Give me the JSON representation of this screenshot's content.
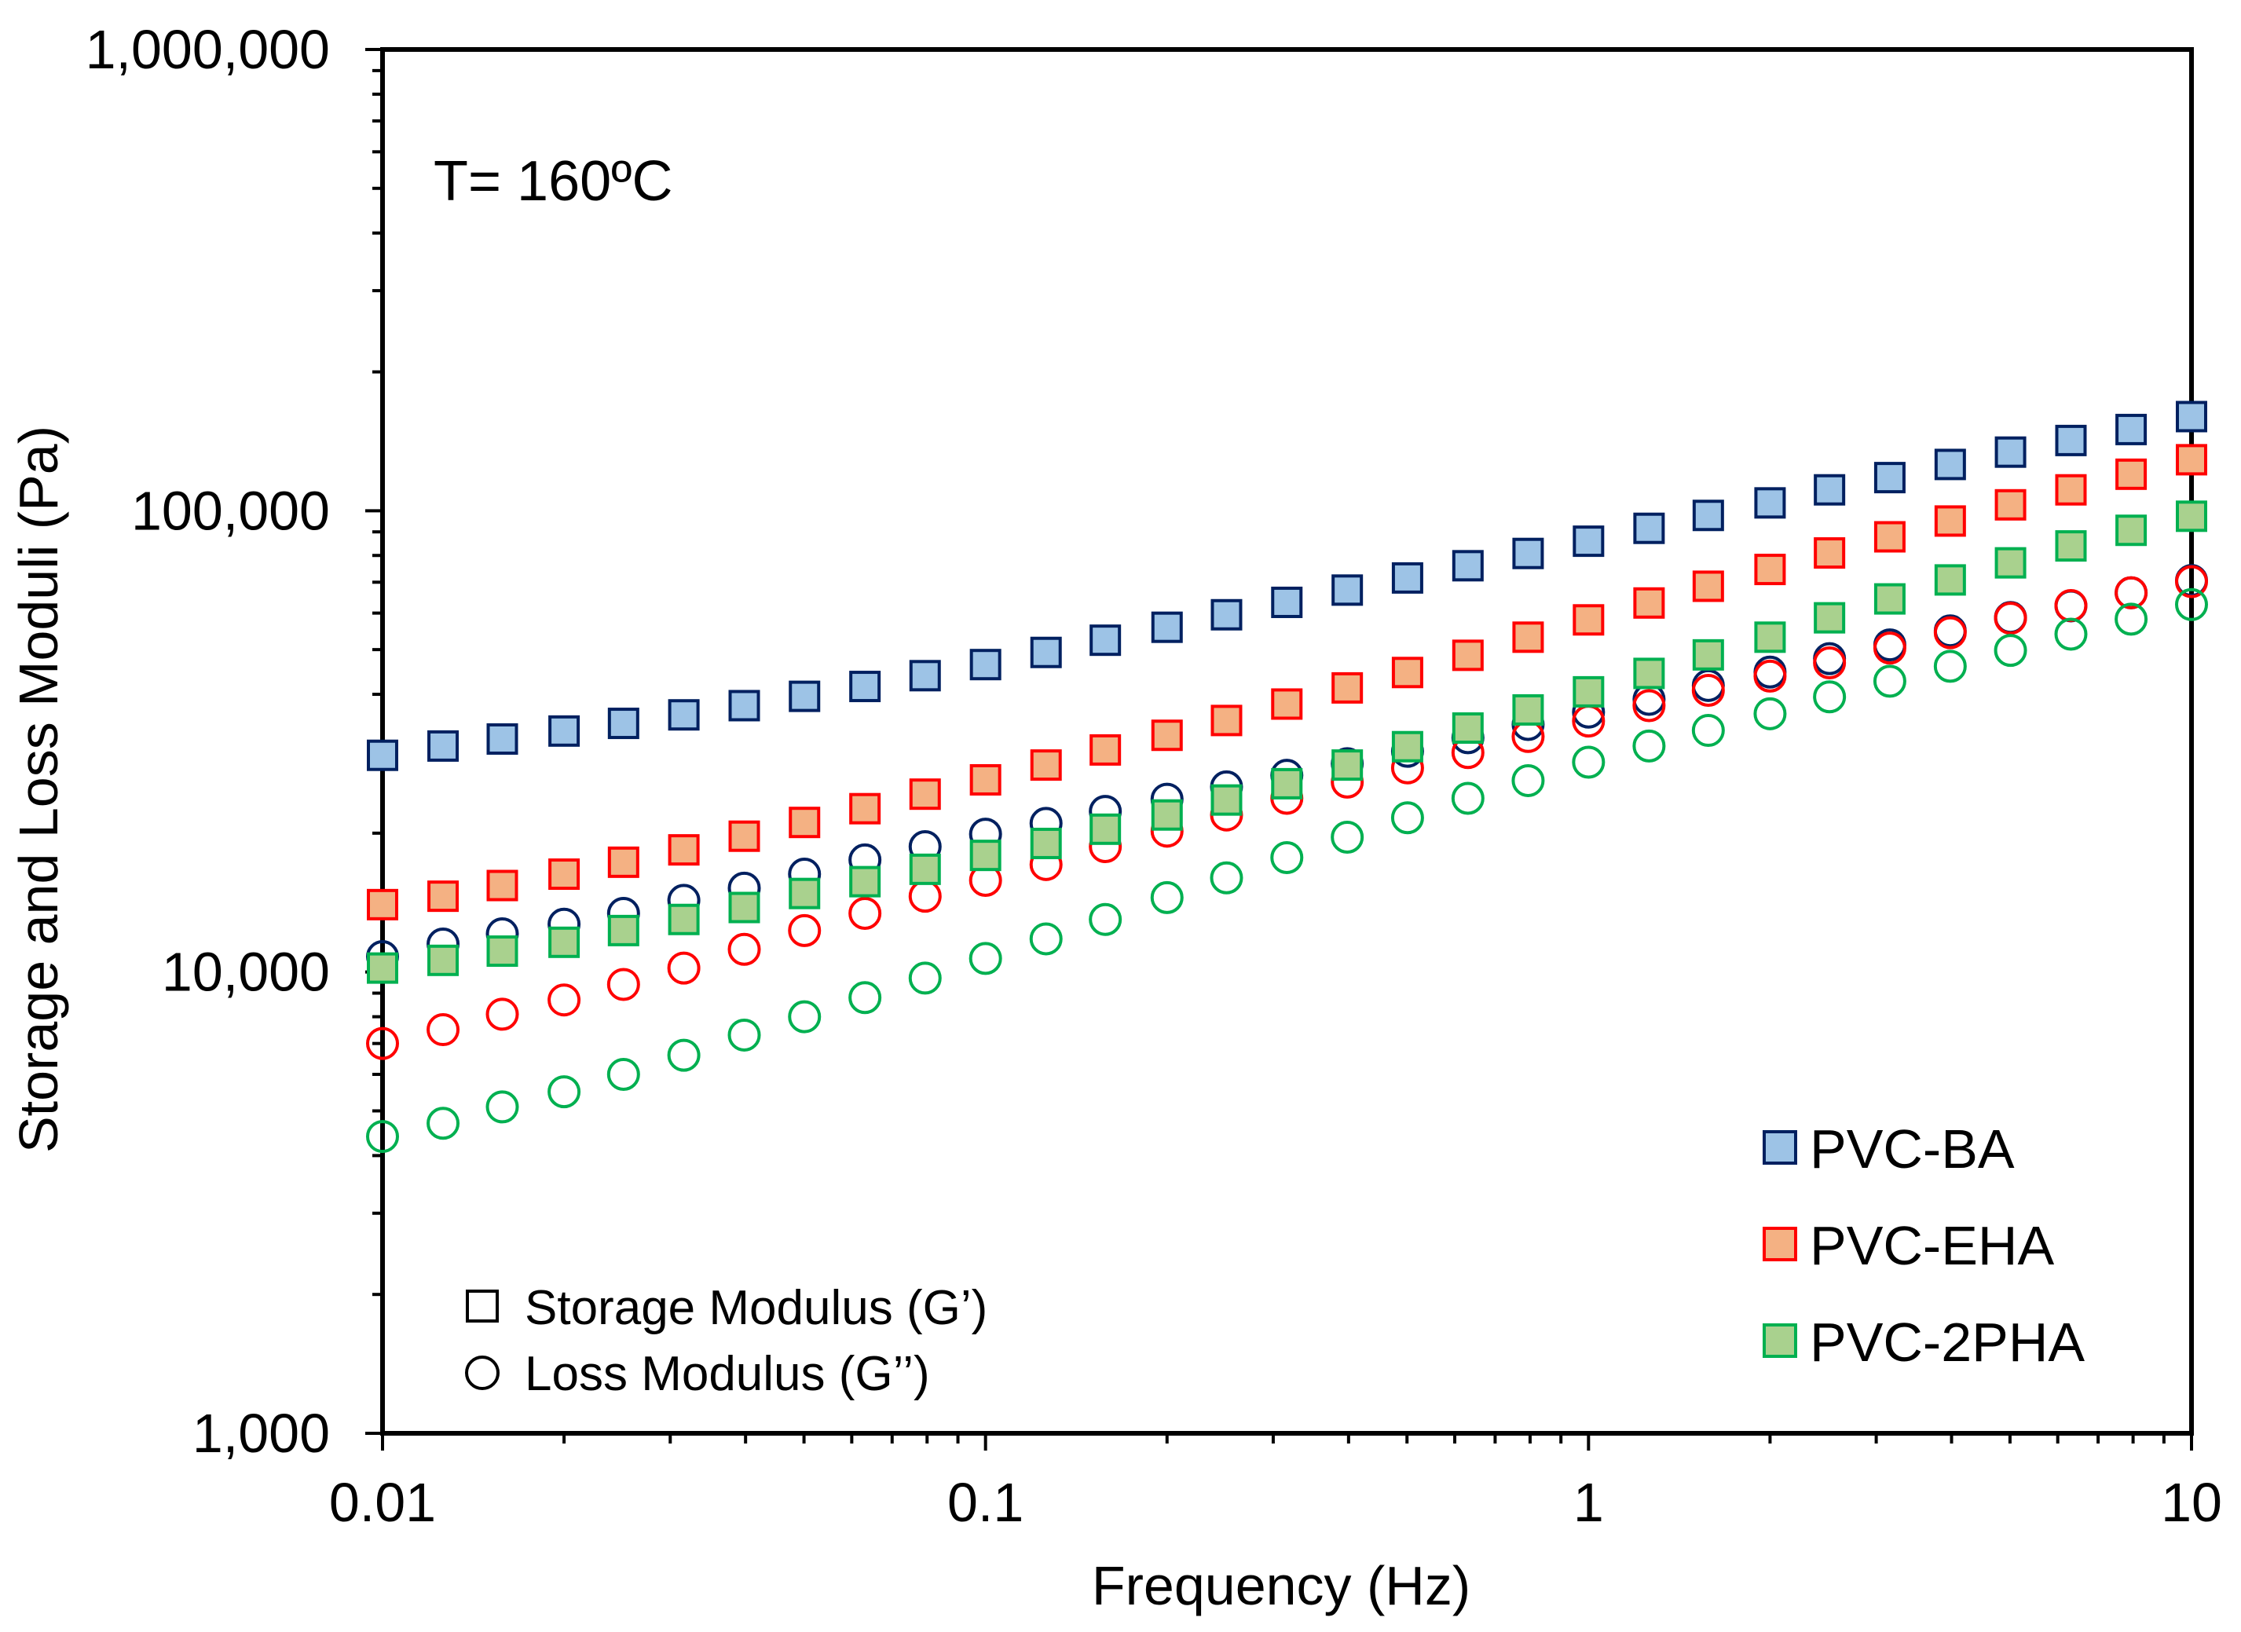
{
  "chart_data": {
    "type": "scatter",
    "title": "",
    "annotation": "T= 160ºC",
    "xlabel": "Frequency (Hz)",
    "ylabel": "Storage and Loss Moduli (Pa)",
    "x_scale": "log",
    "y_scale": "log",
    "xlim": [
      0.01,
      10
    ],
    "ylim": [
      1000,
      1000000
    ],
    "x_ticks": [
      {
        "value": 0.01,
        "label": "0.01"
      },
      {
        "value": 0.1,
        "label": "0.1"
      },
      {
        "value": 1,
        "label": "1"
      },
      {
        "value": 10,
        "label": "10"
      }
    ],
    "y_ticks": [
      {
        "value": 1000,
        "label": "1,000"
      },
      {
        "value": 10000,
        "label": "10,000"
      },
      {
        "value": 100000,
        "label": "100,000"
      },
      {
        "value": 1000000,
        "label": "1,000,000"
      }
    ],
    "grid": false,
    "legend": {
      "placement": "bottom-right",
      "entries": [
        {
          "label": "PVC-BA",
          "fill": "#9dc3e6",
          "stroke": "#002060"
        },
        {
          "label": "PVC-EHA",
          "fill": "#f4b183",
          "stroke": "#ff0000"
        },
        {
          "label": "PVC-2PHA",
          "fill": "#a9d18e",
          "stroke": "#00b050"
        }
      ]
    },
    "marker_legend": {
      "placement": "bottom-left",
      "entries": [
        {
          "marker": "square",
          "label": "Storage Modulus (G’)"
        },
        {
          "marker": "circle",
          "label": "Loss Modulus (G’’)"
        }
      ]
    },
    "x": [
      0.01,
      0.0126,
      0.0158,
      0.02,
      0.0251,
      0.0316,
      0.0398,
      0.0501,
      0.0631,
      0.0794,
      0.1,
      0.126,
      0.158,
      0.2,
      0.251,
      0.316,
      0.398,
      0.501,
      0.631,
      0.794,
      1,
      1.26,
      1.58,
      2,
      2.51,
      3.16,
      3.98,
      5.01,
      6.31,
      7.94,
      10
    ],
    "series": [
      {
        "name": "PVC-BA G'",
        "marker": "square",
        "fill": "#9dc3e6",
        "stroke": "#002060",
        "values": [
          29500,
          30900,
          32000,
          33300,
          34600,
          36100,
          37800,
          39600,
          41600,
          43900,
          46400,
          49300,
          52400,
          55900,
          59500,
          63300,
          67300,
          71500,
          76000,
          80800,
          85900,
          91600,
          97700,
          104000,
          111000,
          118000,
          126000,
          134000,
          142000,
          150000,
          160000
        ]
      },
      {
        "name": "PVC-BA G''",
        "marker": "circle",
        "fill": "none",
        "stroke": "#002060",
        "values": [
          10800,
          11500,
          12100,
          12700,
          13400,
          14300,
          15200,
          16300,
          17500,
          18700,
          19900,
          21000,
          22300,
          23700,
          25200,
          26700,
          28300,
          30100,
          32200,
          34400,
          36600,
          39000,
          41800,
          44700,
          47800,
          51200,
          54900,
          58700,
          62200,
          66400,
          70600
        ]
      },
      {
        "name": "PVC-EHA G'",
        "marker": "square",
        "fill": "#f4b183",
        "stroke": "#ff0000",
        "values": [
          14000,
          14600,
          15400,
          16300,
          17300,
          18400,
          19700,
          21100,
          22600,
          24300,
          26100,
          28100,
          30300,
          32600,
          35100,
          38100,
          41300,
          44600,
          48600,
          53200,
          58000,
          63100,
          68600,
          74600,
          81000,
          87800,
          95000,
          103000,
          111000,
          120000,
          129000
        ]
      },
      {
        "name": "PVC-EHA G''",
        "marker": "circle",
        "fill": "none",
        "stroke": "#ff0000",
        "values": [
          7000,
          7500,
          8100,
          8700,
          9400,
          10200,
          11200,
          12300,
          13400,
          14600,
          15800,
          17100,
          18700,
          20200,
          21900,
          23800,
          25800,
          27700,
          29900,
          32400,
          35000,
          37800,
          40800,
          43800,
          46800,
          50400,
          54400,
          58500,
          62300,
          66400,
          70200
        ]
      },
      {
        "name": "PVC-2PHA G'",
        "marker": "square",
        "fill": "#a9d18e",
        "stroke": "#00b050",
        "values": [
          10200,
          10600,
          11100,
          11600,
          12300,
          13000,
          13800,
          14800,
          15700,
          16700,
          17900,
          19000,
          20400,
          21900,
          23600,
          25600,
          28100,
          30800,
          33800,
          37000,
          40500,
          44400,
          48700,
          53200,
          58600,
          64400,
          70800,
          77100,
          83900,
          90700,
          97300
        ]
      },
      {
        "name": "PVC-2PHA G''",
        "marker": "circle",
        "fill": "none",
        "stroke": "#00b050",
        "values": [
          4400,
          4700,
          5100,
          5500,
          6000,
          6600,
          7300,
          8000,
          8800,
          9700,
          10700,
          11800,
          13000,
          14500,
          16000,
          17700,
          19600,
          21600,
          23800,
          26000,
          28500,
          30900,
          33400,
          36300,
          39500,
          42700,
          46000,
          49800,
          54000,
          58200,
          62600
        ]
      }
    ]
  }
}
